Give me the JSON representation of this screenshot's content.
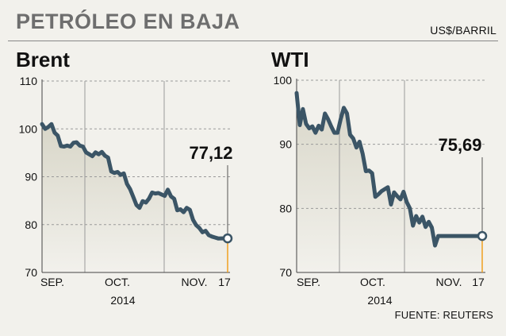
{
  "header": {
    "title": "PETRÓLEO EN BAJA",
    "unit": "US$/BARRIL"
  },
  "source": "FUENTE: REUTERS",
  "colors": {
    "line": "#3b5566",
    "fill_top": "#d8d6c8",
    "fill_bottom": "#f2f1ec",
    "grid": "#9a9a9a",
    "marker_stem": "#f0a020",
    "background": "#f2f1ec"
  },
  "chart_data": [
    {
      "type": "line",
      "title": "Brent",
      "x_tick_labels": [
        "SEP.",
        "OCT.",
        "NOV.",
        "17"
      ],
      "x_sublabel": "2014",
      "ylim": [
        70,
        110
      ],
      "yticks": [
        70,
        80,
        90,
        100,
        110
      ],
      "callout": "77,12",
      "last_value": 77.12,
      "grid": "dashed horizontal, solid monthly dividers",
      "x": [
        1,
        2,
        3,
        4,
        5,
        6,
        7,
        8,
        9,
        10,
        11,
        12,
        13,
        14,
        15,
        16,
        17,
        18,
        19,
        20,
        21,
        22,
        23,
        24,
        25,
        26,
        27,
        28,
        29,
        30,
        31,
        32,
        33,
        34,
        35,
        36,
        37,
        38,
        39,
        40,
        41,
        42,
        43,
        44,
        45,
        46,
        47,
        48,
        49,
        50,
        51,
        52,
        53,
        54,
        55,
        56,
        57,
        58,
        59,
        60
      ],
      "values": [
        101.0,
        100.0,
        100.4,
        101.0,
        99.2,
        98.6,
        96.4,
        96.3,
        96.5,
        96.3,
        97.1,
        97.2,
        96.5,
        96.3,
        95.1,
        94.7,
        94.3,
        95.1,
        94.7,
        95.2,
        94.4,
        94.0,
        91.1,
        90.8,
        91.0,
        90.4,
        90.7,
        88.5,
        87.4,
        85.8,
        84.1,
        83.5,
        84.9,
        84.6,
        85.4,
        86.7,
        86.5,
        86.6,
        86.3,
        86.0,
        87.3,
        85.9,
        85.4,
        83.0,
        83.2,
        82.6,
        83.5,
        83.1,
        81.0,
        79.9,
        79.3,
        78.4,
        78.7,
        77.8,
        77.5,
        77.3,
        77.1,
        77.12,
        77.12,
        77.12
      ]
    },
    {
      "type": "line",
      "title": "WTI",
      "x_tick_labels": [
        "SEP.",
        "OCT.",
        "NOV.",
        "17"
      ],
      "x_sublabel": "2014",
      "ylim": [
        70,
        100
      ],
      "yticks": [
        70,
        80,
        90,
        100
      ],
      "callout": "75,69",
      "last_value": 75.69,
      "grid": "dashed horizontal, solid monthly dividers",
      "x": [
        1,
        2,
        3,
        4,
        5,
        6,
        7,
        8,
        9,
        10,
        11,
        12,
        13,
        14,
        15,
        16,
        17,
        18,
        19,
        20,
        21,
        22,
        23,
        24,
        25,
        26,
        27,
        28,
        29,
        30,
        31,
        32,
        33,
        34,
        35,
        36,
        37,
        38,
        39,
        40,
        41,
        42,
        43,
        44,
        45,
        46,
        47,
        48,
        49,
        50,
        51,
        52,
        53,
        54,
        55,
        56,
        57,
        58,
        59,
        60
      ],
      "values": [
        98.0,
        93.0,
        95.5,
        93.2,
        92.5,
        92.8,
        91.8,
        92.9,
        92.3,
        94.8,
        93.9,
        92.8,
        91.8,
        91.8,
        93.9,
        95.7,
        94.8,
        91.5,
        90.9,
        89.5,
        90.4,
        88.5,
        85.8,
        85.9,
        85.5,
        81.8,
        82.2,
        82.7,
        83.0,
        83.3,
        80.6,
        82.5,
        81.9,
        81.4,
        82.6,
        81.0,
        80.0,
        77.3,
        78.8,
        77.8,
        78.7,
        77.1,
        77.9,
        77.0,
        74.2,
        75.69,
        75.69,
        75.69,
        75.69,
        75.69,
        75.69,
        75.69,
        75.69,
        75.69,
        75.69,
        75.69,
        75.69,
        75.69,
        75.69,
        75.69
      ]
    }
  ]
}
